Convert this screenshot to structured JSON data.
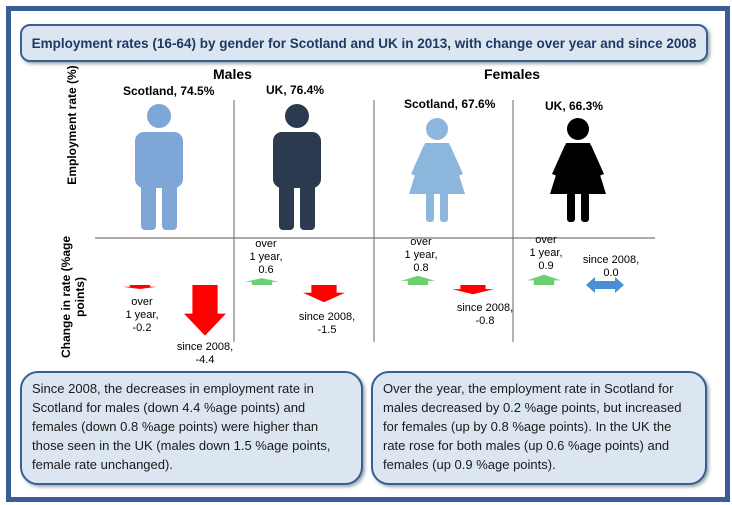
{
  "title": "Employment rates (16-64) by gender for Scotland and UK in 2013, with change over year and since 2008",
  "groups": {
    "males": "Males",
    "females": "Females"
  },
  "y_labels": {
    "top": "Employment rate (%)",
    "bottom": "Change in rate (%age  points)"
  },
  "colors": {
    "frame": "#3a5d95",
    "scot_male": "#7ea6d6",
    "uk_male": "#2b3a4f",
    "scot_female": "#8cb6dc",
    "uk_female": "#000000",
    "decrease": "#ff0000",
    "increase": "#6ccf72",
    "no_change": "#4a8fd6"
  },
  "chart_data": {
    "type": "bar",
    "categories": [
      "Scotland Males",
      "UK Males",
      "Scotland Females",
      "UK Females"
    ],
    "employment_labels": [
      "Scotland, 74.5%",
      "UK, 76.4%",
      "Scotland, 67.6%",
      "UK, 66.3%"
    ],
    "employment_rate": [
      74.5,
      76.4,
      67.6,
      66.3
    ],
    "series": [
      {
        "name": "over 1 year",
        "values": [
          -0.2,
          0.6,
          0.8,
          0.9
        ],
        "labels": [
          "over\n1 year,\n-0.2",
          "over\n1 year,\n0.6",
          "over\n1 year,\n0.8",
          "over\n1 year,\n0.9"
        ]
      },
      {
        "name": "since 2008",
        "values": [
          -4.4,
          -1.5,
          -0.8,
          0.0
        ],
        "labels": [
          "since 2008,\n-4.4",
          "since 2008,\n-1.5",
          "since 2008,\n-0.8",
          "since 2008,\n0.0"
        ]
      }
    ]
  },
  "notes": {
    "left": "Since 2008, the decreases in employment rate in Scotland for males (down 4.4 %age points) and females (down 0.8 %age points) were higher than those seen in the UK (males down 1.5 %age points, female rate unchanged).",
    "right": "Over the year,  the employment rate in Scotland for males decreased by 0.2 %age points, but increased for females (up by 0.8 %age points). In the UK the rate rose for both males (up 0.6 %age points) and females (up 0.9 %age points)."
  }
}
